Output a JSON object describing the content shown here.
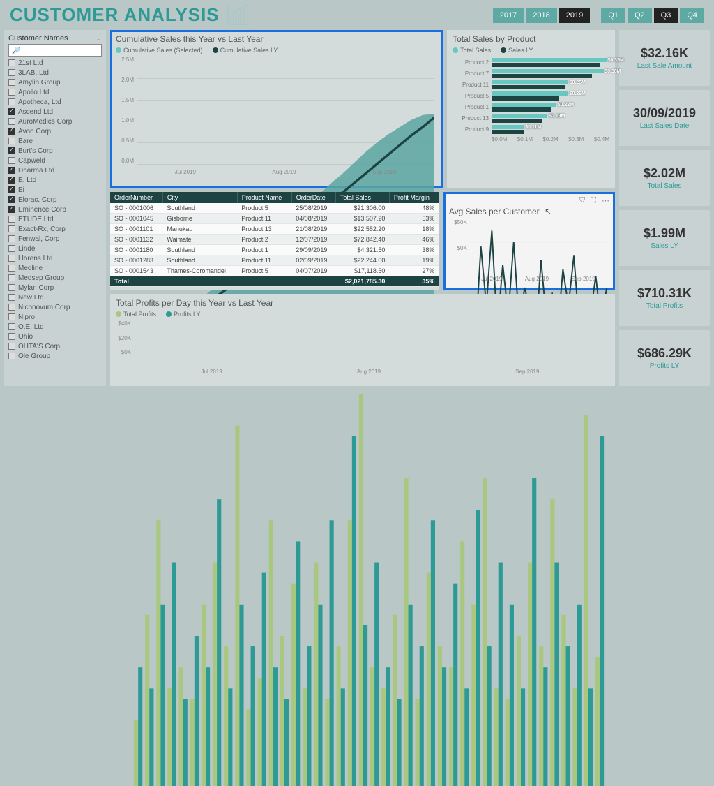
{
  "header": {
    "title": "CUSTOMER ANALYSIS",
    "years": [
      "2017",
      "2018",
      "2019"
    ],
    "year_active": 2,
    "quarters": [
      "Q1",
      "Q2",
      "Q3",
      "Q4"
    ],
    "quarter_active": 2
  },
  "sidebar": {
    "title": "Customer Names",
    "search_placeholder": "",
    "customers": [
      {
        "n": "21st Ltd",
        "c": false
      },
      {
        "n": "3LAB, Ltd",
        "c": false
      },
      {
        "n": "Amylin Group",
        "c": false
      },
      {
        "n": "Apollo Ltd",
        "c": false
      },
      {
        "n": "Apotheca, Ltd",
        "c": false
      },
      {
        "n": "Ascend Ltd",
        "c": true
      },
      {
        "n": "AuroMedics Corp",
        "c": false
      },
      {
        "n": "Avon Corp",
        "c": true
      },
      {
        "n": "Bare",
        "c": false
      },
      {
        "n": "Burt's Corp",
        "c": true
      },
      {
        "n": "Capweld",
        "c": false
      },
      {
        "n": "Dharma Ltd",
        "c": true
      },
      {
        "n": "E. Ltd",
        "c": true
      },
      {
        "n": "Ei",
        "c": true
      },
      {
        "n": "Elorac, Corp",
        "c": true
      },
      {
        "n": "Eminence Corp",
        "c": true
      },
      {
        "n": "ETUDE Ltd",
        "c": false
      },
      {
        "n": "Exact-Rx, Corp",
        "c": false
      },
      {
        "n": "Fenwal, Corp",
        "c": false
      },
      {
        "n": "Linde",
        "c": false
      },
      {
        "n": "Llorens Ltd",
        "c": false
      },
      {
        "n": "Medline",
        "c": false
      },
      {
        "n": "Medsep Group",
        "c": false
      },
      {
        "n": "Mylan Corp",
        "c": false
      },
      {
        "n": "New Ltd",
        "c": false
      },
      {
        "n": "Niconovum Corp",
        "c": false
      },
      {
        "n": "Nipro",
        "c": false
      },
      {
        "n": "O.E. Ltd",
        "c": false
      },
      {
        "n": "Ohio",
        "c": false
      },
      {
        "n": "OHTA'S Corp",
        "c": false
      },
      {
        "n": "Ole Group",
        "c": false
      }
    ]
  },
  "cumulative": {
    "title": "Cumulative Sales this Year vs Last Year",
    "legend": [
      {
        "l": "Cumulative Sales (Selected)",
        "c": "#68c7c1"
      },
      {
        "l": "Cumulative Sales LY",
        "c": "#1d4443"
      }
    ],
    "y_ticks": [
      "2.5M",
      "2.0M",
      "1.5M",
      "1.0M",
      "0.5M",
      "0.0M"
    ],
    "x_ticks": [
      "Jul 2019",
      "Aug 2019",
      "Sep 2019"
    ],
    "ylim": [
      0,
      2.5
    ],
    "series_selected": [
      0.02,
      0.08,
      0.15,
      0.23,
      0.31,
      0.4,
      0.5,
      0.58,
      0.66,
      0.75,
      0.83,
      0.92,
      1.0,
      1.09,
      1.18,
      1.26,
      1.35,
      1.44,
      1.52,
      1.61,
      1.7,
      1.78,
      1.85,
      1.91,
      1.97,
      2.01,
      2.02
    ],
    "series_ly": [
      0.01,
      0.06,
      0.12,
      0.19,
      0.26,
      0.33,
      0.41,
      0.49,
      0.56,
      0.64,
      0.72,
      0.8,
      0.88,
      0.96,
      1.04,
      1.12,
      1.2,
      1.28,
      1.36,
      1.44,
      1.52,
      1.6,
      1.68,
      1.76,
      1.84,
      1.91,
      1.99
    ],
    "fill": "#5aa6a2",
    "line": "#1d4443",
    "highlight": "#1a6fe0"
  },
  "byproduct": {
    "title": "Total Sales by Product",
    "legend": [
      {
        "l": "Total Sales",
        "c": "#68c7c1"
      },
      {
        "l": "Sales LY",
        "c": "#1d4443"
      }
    ],
    "xlim": 0.4,
    "x_ticks": [
      "$0.0M",
      "$0.1M",
      "$0.2M",
      "$0.3M",
      "$0.4M"
    ],
    "rows": [
      {
        "l": "Product 2",
        "a": 0.39,
        "b": 0.37,
        "t": "$0.39M"
      },
      {
        "l": "Product 7",
        "a": 0.38,
        "b": 0.34,
        "t": "$0.38M"
      },
      {
        "l": "Product 11",
        "a": 0.26,
        "b": 0.25,
        "t": "$0.26M"
      },
      {
        "l": "Product 5",
        "a": 0.26,
        "b": 0.23,
        "t": "$0.26M"
      },
      {
        "l": "Product 1",
        "a": 0.22,
        "b": 0.2,
        "t": "$0.22M"
      },
      {
        "l": "Product 13",
        "a": 0.19,
        "b": 0.17,
        "t": "$0.19M"
      },
      {
        "l": "Product 9",
        "a": 0.11,
        "b": 0.11,
        "t": "$0.11M"
      }
    ],
    "col_a": "#68c7c1",
    "col_b": "#1d4443"
  },
  "table": {
    "columns": [
      "OrderNumber",
      "City",
      "Product Name",
      "OrderDate",
      "Total Sales",
      "Profit Margin"
    ],
    "rows": [
      [
        "SO - 0001006",
        "Southland",
        "Product 5",
        "25/08/2019",
        "$21,306.00",
        "48%"
      ],
      [
        "SO - 0001045",
        "Gisborne",
        "Product 11",
        "04/08/2019",
        "$13,507.20",
        "53%"
      ],
      [
        "SO - 0001101",
        "Manukau",
        "Product 13",
        "21/08/2019",
        "$22,552.20",
        "18%"
      ],
      [
        "SO - 0001132",
        "Waimate",
        "Product 2",
        "12/07/2019",
        "$72,842.40",
        "46%"
      ],
      [
        "SO - 0001180",
        "Southland",
        "Product 1",
        "29/09/2019",
        "$4,321.50",
        "38%"
      ],
      [
        "SO - 0001283",
        "Southland",
        "Product 11",
        "02/09/2019",
        "$22,244.00",
        "19%"
      ],
      [
        "SO - 0001543",
        "Thames-Coromandel",
        "Product 5",
        "04/07/2019",
        "$17,118.50",
        "27%"
      ]
    ],
    "total": [
      "Total",
      "",
      "",
      "",
      "$2,021,785.30",
      "35%"
    ]
  },
  "avgsales": {
    "title": "Avg Sales per Customer",
    "y_ticks": [
      "$50K",
      "$0K"
    ],
    "x_ticks": [
      "Jul 2019",
      "Aug 2019",
      "Sep 2019"
    ],
    "ylim": 60,
    "values": [
      5,
      8,
      48,
      22,
      55,
      12,
      40,
      18,
      50,
      14,
      30,
      20,
      8,
      42,
      15,
      28,
      10,
      38,
      22,
      44,
      12,
      25,
      18,
      35,
      14,
      30
    ],
    "line": "#1d4443",
    "highlight": "#1a6fe0"
  },
  "profits": {
    "title": "Total Profits per Day this Year vs Last Year",
    "legend": [
      {
        "l": "Total Profits",
        "c": "#a9c77f"
      },
      {
        "l": "Profits LY",
        "c": "#2d9a96"
      }
    ],
    "y_ticks": [
      "$40K",
      "$20K",
      "$0K"
    ],
    "x_ticks": [
      "Jul 2019",
      "Aug 2019",
      "Sep 2019"
    ],
    "ylim": 45,
    "a_values": [
      7,
      17,
      26,
      10,
      12,
      9,
      18,
      22,
      14,
      35,
      8,
      11,
      26,
      15,
      20,
      10,
      22,
      9,
      14,
      26,
      38,
      12,
      10,
      17,
      30,
      9,
      21,
      14,
      12,
      24,
      18,
      30,
      10,
      9,
      15,
      22,
      14,
      28,
      17,
      10,
      36,
      13
    ],
    "b_values": [
      12,
      10,
      18,
      22,
      9,
      15,
      12,
      28,
      10,
      18,
      14,
      21,
      12,
      9,
      24,
      14,
      18,
      26,
      10,
      34,
      16,
      22,
      12,
      9,
      18,
      14,
      26,
      12,
      20,
      10,
      27,
      14,
      22,
      18,
      10,
      30,
      12,
      22,
      14,
      18,
      10,
      34
    ],
    "col_a": "#a9c77f",
    "col_b": "#2d9a96"
  },
  "kpis": [
    {
      "v": "$32.16K",
      "l": "Last Sale Amount"
    },
    {
      "v": "30/09/2019",
      "l": "Last Sales Date"
    },
    {
      "v": "$2.02M",
      "l": "Total Sales"
    },
    {
      "v": "$1.99M",
      "l": "Sales LY"
    },
    {
      "v": "$710.31K",
      "l": "Total Profits"
    },
    {
      "v": "$686.29K",
      "l": "Profits LY"
    }
  ]
}
